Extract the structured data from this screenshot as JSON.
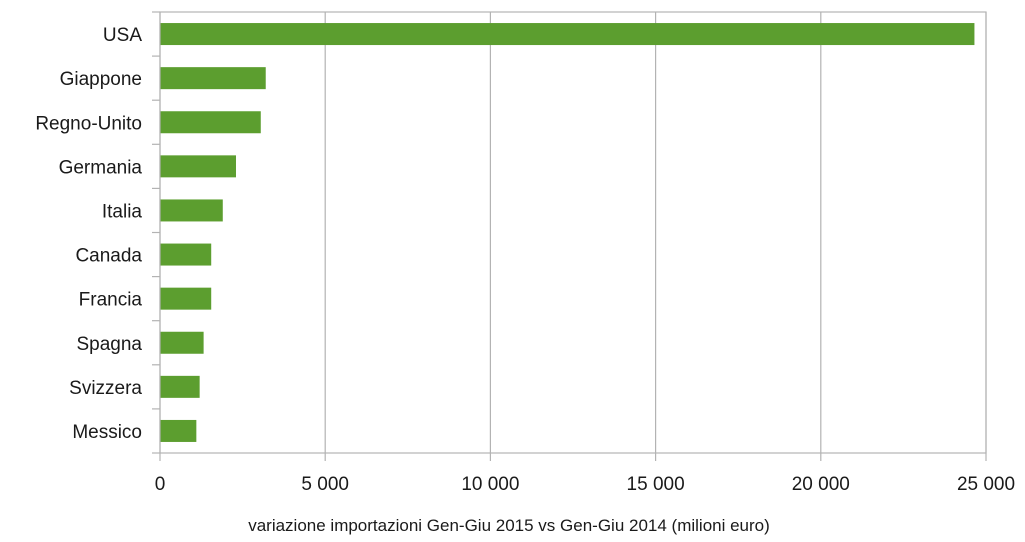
{
  "chart_data": {
    "type": "bar",
    "orientation": "horizontal",
    "categories": [
      "USA",
      "Giappone",
      "Regno-Unito",
      "Germania",
      "Italia",
      "Canada",
      "Francia",
      "Spagna",
      "Svizzera",
      "Messico"
    ],
    "values": [
      24650,
      3200,
      3050,
      2300,
      1900,
      1550,
      1550,
      1320,
      1200,
      1100
    ],
    "xlabel": "variazione importazioni Gen-Giu 2015 vs Gen-Giu 2014 (milioni euro)",
    "ylabel": "",
    "xlim": [
      0,
      25000
    ],
    "x_ticks": [
      0,
      5000,
      10000,
      15000,
      20000,
      25000
    ],
    "x_tick_labels": [
      "0",
      "5 000",
      "10 000",
      "15 000",
      "20 000",
      "25 000"
    ],
    "grid": true,
    "bar_color": "#5c9e2f",
    "grid_color": "#b3b3b3"
  }
}
